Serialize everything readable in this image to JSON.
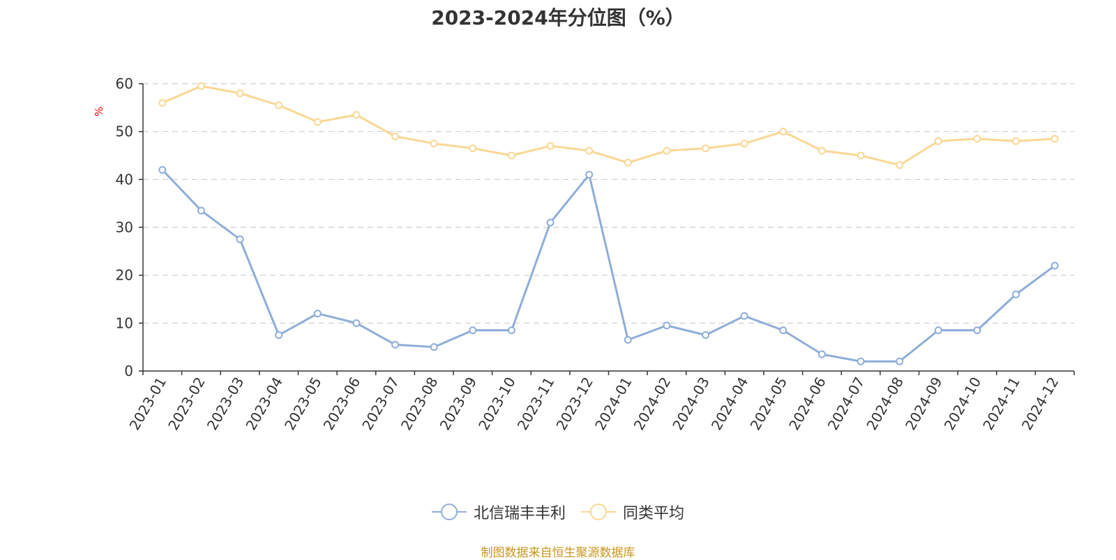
{
  "title": "2023-2024年分位图（%）",
  "unit_label": "%",
  "source": "制图数据来自恒生聚源数据库",
  "colors": {
    "series1": "#8eadd8",
    "series2": "#fad793",
    "grid": "#cccccc",
    "axis": "#333333",
    "unit": "#ff0000",
    "source": "#c8961e"
  },
  "chart_data": {
    "type": "line",
    "categories": [
      "2023-01",
      "2023-02",
      "2023-03",
      "2023-04",
      "2023-05",
      "2023-06",
      "2023-07",
      "2023-08",
      "2023-09",
      "2023-10",
      "2023-11",
      "2023-12",
      "2024-01",
      "2024-02",
      "2024-03",
      "2024-04",
      "2024-05",
      "2024-06",
      "2024-07",
      "2024-08",
      "2024-09",
      "2024-10",
      "2024-11",
      "2024-12"
    ],
    "series": [
      {
        "name": "北信瑞丰丰利",
        "color": "#8eadd8",
        "values": [
          42.0,
          33.5,
          27.5,
          7.5,
          12.0,
          10.0,
          5.5,
          5.0,
          8.5,
          8.5,
          31.0,
          41.0,
          6.5,
          9.5,
          7.5,
          11.5,
          8.5,
          3.5,
          2.0,
          2.0,
          8.5,
          8.5,
          16.0,
          22.0
        ]
      },
      {
        "name": "同类平均",
        "color": "#fad793",
        "values": [
          56.0,
          59.5,
          58.0,
          55.5,
          52.0,
          53.5,
          49.0,
          47.5,
          46.5,
          45.0,
          47.0,
          46.0,
          43.5,
          46.0,
          46.5,
          47.5,
          50.0,
          46.0,
          45.0,
          43.0,
          48.0,
          48.5,
          48.0,
          48.5
        ]
      }
    ],
    "yticks": [
      0,
      10,
      20,
      30,
      40,
      50,
      60
    ],
    "ylim": [
      0,
      60
    ],
    "grid": true,
    "legend_position": "bottom-center"
  }
}
